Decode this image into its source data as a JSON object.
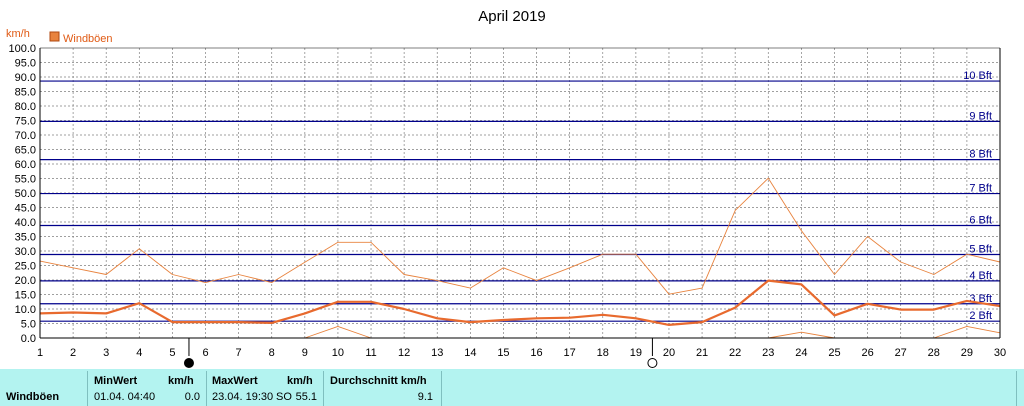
{
  "chart_data": {
    "type": "line",
    "title": "April 2019",
    "ylabel": "km/h",
    "ylim": [
      0,
      100
    ],
    "y_tick_step": 5,
    "x": [
      1,
      2,
      3,
      4,
      5,
      6,
      7,
      8,
      9,
      10,
      11,
      12,
      13,
      14,
      15,
      16,
      17,
      18,
      19,
      20,
      21,
      22,
      23,
      24,
      25,
      26,
      27,
      28,
      29,
      30
    ],
    "legend": [
      "Windböen"
    ],
    "series": [
      {
        "name": "Windböen",
        "role": "max",
        "values": [
          26.5,
          24.2,
          21.9,
          30.8,
          21.9,
          19.1,
          21.9,
          19.1,
          26.1,
          33.0,
          33.0,
          21.9,
          19.8,
          17.2,
          24.2,
          19.8,
          24.2,
          28.9,
          28.9,
          15.1,
          17.2,
          44.0,
          55.1,
          37.0,
          21.9,
          35.0,
          26.2,
          21.9,
          28.9,
          26.2
        ]
      },
      {
        "name": "Windböen",
        "role": "average",
        "values": [
          8.5,
          8.8,
          8.5,
          12.0,
          5.5,
          5.5,
          5.5,
          5.2,
          8.5,
          12.5,
          12.5,
          10.0,
          6.8,
          5.5,
          6.2,
          6.8,
          7.0,
          8.0,
          6.8,
          4.5,
          5.5,
          10.5,
          19.8,
          18.5,
          7.8,
          11.8,
          9.8,
          9.8,
          12.8,
          11.0
        ]
      },
      {
        "name": "Windböen",
        "role": "min",
        "values": [
          0.0,
          0.0,
          0.0,
          0.0,
          0.0,
          0.0,
          0.0,
          0.0,
          0.0,
          4.0,
          0.0,
          0.0,
          0.0,
          0.0,
          0.0,
          0.0,
          0.0,
          0.0,
          0.0,
          0.0,
          0.0,
          0.0,
          0.0,
          2.0,
          0.0,
          0.0,
          0.0,
          0.0,
          4.0,
          1.8
        ]
      }
    ],
    "beaufort_lines": [
      {
        "label": "2 Bft",
        "value": 5.8
      },
      {
        "label": "3 Bft",
        "value": 11.8
      },
      {
        "label": "4 Bft",
        "value": 19.7
      },
      {
        "label": "5 Bft",
        "value": 28.8
      },
      {
        "label": "6 Bft",
        "value": 38.8
      },
      {
        "label": "7 Bft",
        "value": 49.8
      },
      {
        "label": "8 Bft",
        "value": 61.5
      },
      {
        "label": "9 Bft",
        "value": 74.7
      },
      {
        "label": "10 Bft",
        "value": 88.6
      }
    ],
    "moon_phases": [
      {
        "day": 5.5,
        "phase": "new-moon"
      },
      {
        "day": 19.5,
        "phase": "full-moon"
      }
    ],
    "grid": true,
    "legend_position": "top-left",
    "colors": {
      "max": "#e8833e",
      "average": "#e86a2e",
      "min": "#e8833e",
      "beaufort": "#00008b",
      "grid": "#808080"
    }
  },
  "stats": {
    "row_label": "Windböen",
    "min_header": "MinWert",
    "min_unit": "km/h",
    "min_date": "01.04.  04:40",
    "min_value": "0.0",
    "max_header": "MaxWert",
    "max_unit": "km/h",
    "max_date": "23.04.  19:30",
    "max_dir": "SO",
    "max_value": "55.1",
    "avg_header": "Durchschnitt km/h",
    "avg_value": "9.1"
  }
}
